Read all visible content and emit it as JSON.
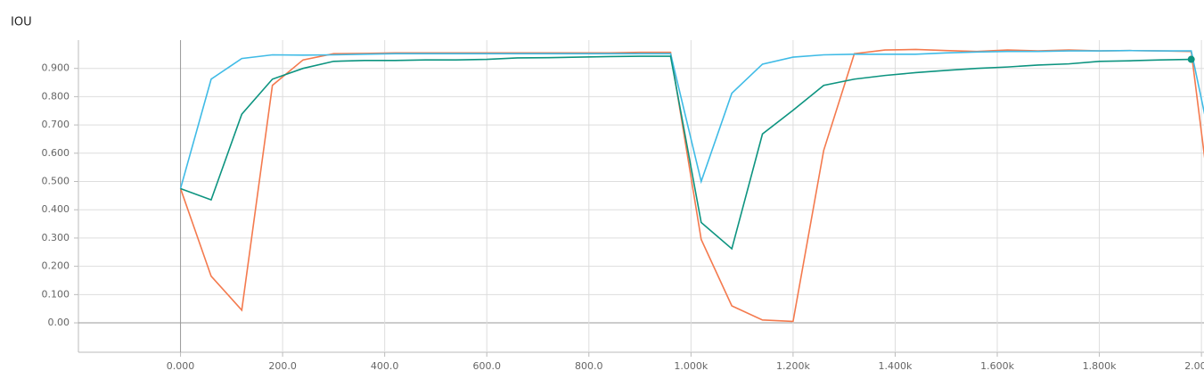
{
  "chart_data": {
    "type": "line",
    "title": "IOU",
    "x": [
      0,
      60,
      120,
      180,
      240,
      300,
      360,
      420,
      480,
      540,
      600,
      660,
      720,
      780,
      840,
      900,
      960,
      1020,
      1080,
      1140,
      1200,
      1260,
      1320,
      1380,
      1440,
      1500,
      1560,
      1620,
      1680,
      1740,
      1800,
      1860,
      1920,
      1980,
      2040
    ],
    "series": [
      {
        "color": "#f47a4e",
        "values": [
          0.475,
          0.165,
          0.045,
          0.84,
          0.93,
          0.952,
          0.953,
          0.955,
          0.955,
          0.955,
          0.955,
          0.955,
          0.955,
          0.955,
          0.955,
          0.957,
          0.957,
          0.295,
          0.06,
          0.01,
          0.005,
          0.61,
          0.952,
          0.965,
          0.967,
          0.963,
          0.96,
          0.965,
          0.962,
          0.965,
          0.962,
          0.963,
          0.962,
          0.96,
          0.1
        ]
      },
      {
        "color": "#3fbbe6",
        "values": [
          0.475,
          0.862,
          0.935,
          0.948,
          0.947,
          0.948,
          0.95,
          0.952,
          0.952,
          0.952,
          0.952,
          0.952,
          0.952,
          0.952,
          0.952,
          0.952,
          0.952,
          0.5,
          0.812,
          0.915,
          0.94,
          0.948,
          0.95,
          0.95,
          0.95,
          0.955,
          0.958,
          0.96,
          0.96,
          0.962,
          0.962,
          0.963,
          0.962,
          0.962,
          0.45
        ]
      },
      {
        "color": "#0d9480",
        "values": [
          0.475,
          0.435,
          0.738,
          0.862,
          0.9,
          0.925,
          0.928,
          0.928,
          0.93,
          0.93,
          0.932,
          0.937,
          0.938,
          0.94,
          0.942,
          0.943,
          0.943,
          0.355,
          0.262,
          0.668,
          0.752,
          0.84,
          0.862,
          0.875,
          0.885,
          0.893,
          0.9,
          0.905,
          0.912,
          0.916,
          0.925,
          0.927,
          0.93,
          0.932,
          null
        ]
      }
    ],
    "xlim": [
      -200,
      2005
    ],
    "ylim": [
      -0.104,
      1.0
    ],
    "xticks": [
      {
        "value": 0,
        "label": "0.000"
      },
      {
        "value": 200,
        "label": "200.0"
      },
      {
        "value": 400,
        "label": "400.0"
      },
      {
        "value": 600,
        "label": "600.0"
      },
      {
        "value": 800,
        "label": "800.0"
      },
      {
        "value": 1000,
        "label": "1.000k"
      },
      {
        "value": 1200,
        "label": "1.200k"
      },
      {
        "value": 1400,
        "label": "1.400k"
      },
      {
        "value": 1600,
        "label": "1.600k"
      },
      {
        "value": 1800,
        "label": "1.800k"
      },
      {
        "value": 2000,
        "label": "2.000k"
      }
    ],
    "yticks": [
      {
        "value": 0,
        "label": "0.00"
      },
      {
        "value": 0.1,
        "label": "0.100"
      },
      {
        "value": 0.2,
        "label": "0.200"
      },
      {
        "value": 0.3,
        "label": "0.300"
      },
      {
        "value": 0.4,
        "label": "0.400"
      },
      {
        "value": 0.5,
        "label": "0.500"
      },
      {
        "value": 0.6,
        "label": "0.600"
      },
      {
        "value": 0.7,
        "label": "0.700"
      },
      {
        "value": 0.8,
        "label": "0.800"
      },
      {
        "value": 0.9,
        "label": "0.900"
      }
    ],
    "grid": true
  }
}
